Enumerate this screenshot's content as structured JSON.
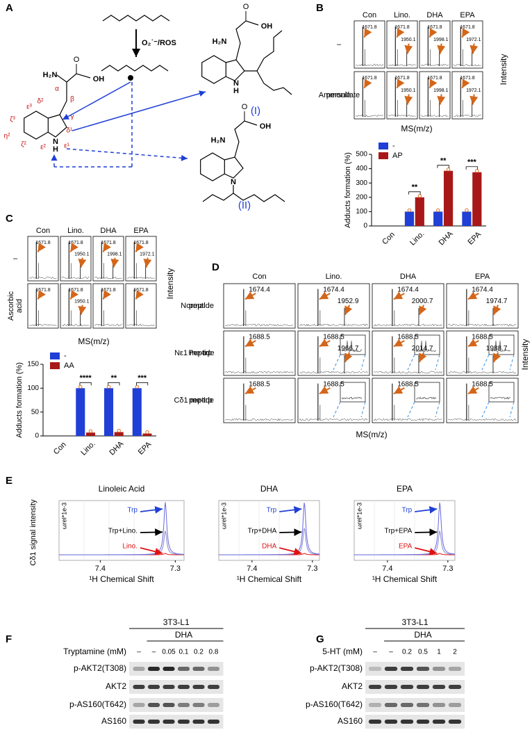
{
  "panels": [
    "A",
    "B",
    "C",
    "D",
    "E",
    "F",
    "G"
  ],
  "panel_a": {
    "reagent": "O₂˙⁻/ROS",
    "atoms": [
      "α",
      "β",
      "γ",
      "δ¹",
      "δ²",
      "ε¹",
      "ε²",
      "ε³",
      "ζ²",
      "ζ³",
      "η²"
    ],
    "groups": {
      "amine": "H₂N",
      "acid": "OH",
      "carbonyl": "O",
      "nitrogen": "N",
      "hydrogen": "H"
    },
    "products": [
      "(I)",
      "(II)"
    ]
  },
  "panel_b": {
    "columns": [
      "Con",
      "Lino.",
      "DHA",
      "EPA"
    ],
    "row_labels": [
      [
        "–"
      ],
      [
        "Ammonia",
        "persulfate"
      ]
    ],
    "peaks": [
      [
        [
          "1671.8"
        ],
        [
          "1671.8",
          "1950.1"
        ],
        [
          "1671.8",
          "1998.1"
        ],
        [
          "1671.8",
          "1972.1"
        ]
      ],
      [
        [
          "1671.8"
        ],
        [
          "1671.8",
          "1950.1"
        ],
        [
          "1671.8",
          "1998.1"
        ],
        [
          "1671.8",
          "1972.1"
        ]
      ]
    ],
    "y_label": "Intensity",
    "x_label": "MS(m/z)"
  },
  "panel_c": {
    "columns": [
      "Con",
      "Lino.",
      "DHA",
      "EPA"
    ],
    "row_labels": [
      [
        "–"
      ],
      [
        "Ascorbic",
        "acid"
      ]
    ],
    "peaks": [
      [
        [
          "1671.8"
        ],
        [
          "1671.8",
          "1950.1"
        ],
        [
          "1671.8",
          "1998.1"
        ],
        [
          "1671.8",
          "1972.1"
        ]
      ],
      [
        [
          "1671.8"
        ],
        [
          "1671.8",
          "1950.1"
        ],
        [
          "1671.8"
        ],
        [
          "1671.8"
        ]
      ]
    ],
    "y_label": "Intensity",
    "x_label": "MS(m/z)"
  },
  "panel_d": {
    "columns": [
      "Con",
      "Lino.",
      "DHA",
      "EPA"
    ],
    "row_labels": [
      [
        "Normal",
        "peptide"
      ],
      [
        "Nε1 me-trp",
        "Peptide"
      ],
      [
        "Cδ1 me-trp",
        "peptide"
      ]
    ],
    "peaks": [
      [
        [
          "1674.4"
        ],
        [
          "1674.4",
          "1952.9"
        ],
        [
          "1674.4",
          "2000.7"
        ],
        [
          "1674.4",
          "1974.7"
        ]
      ],
      [
        [
          "1688.5"
        ],
        [
          "1688.5",
          "1966.7"
        ],
        [
          "1688.5",
          "2014.7"
        ],
        [
          "1688.5",
          "1988.7"
        ]
      ],
      [
        [
          "1688.5"
        ],
        [
          "1688.5"
        ],
        [
          "1688.5"
        ],
        [
          "1688.5"
        ]
      ]
    ],
    "y_label": "Intensity",
    "x_label": "MS(m/z)"
  },
  "panel_e": {
    "y_label": "Cδ1 signal intensity",
    "unit": "ωrel*1e-3",
    "x_label": "¹H Chemical Shift",
    "x_ticks": [
      "7.4",
      "7.3"
    ],
    "plots": [
      {
        "title": "Linoleic Acid",
        "labels": [
          "Trp",
          "Trp+Lino.",
          "Lino."
        ]
      },
      {
        "title": "DHA",
        "labels": [
          "Trp",
          "Trp+DHA",
          "DHA"
        ]
      },
      {
        "title": "EPA",
        "labels": [
          "Trp",
          "Trp+EPA",
          "EPA"
        ]
      }
    ]
  },
  "panel_f": {
    "cell": "3T3-L1",
    "treatment": "DHA",
    "dose_label": "Tryptamine (mM)",
    "lanes": [
      "–",
      "–",
      "0.05",
      "0.1",
      "0.2",
      "0.8"
    ],
    "rows": [
      "p-AKT2(T308)",
      "AKT2",
      "p-AS160(T642)",
      "AS160"
    ]
  },
  "panel_g": {
    "cell": "3T3-L1",
    "treatment": "DHA",
    "dose_label": "5-HT (mM)",
    "lanes": [
      "–",
      "–",
      "0.2",
      "0.5",
      "1",
      "2"
    ],
    "rows": [
      "p-AKT2(T308)",
      "AKT2",
      "p-AS160(T642)",
      "AS160"
    ]
  },
  "chart_data": [
    {
      "type": "bar",
      "y_label": "Adducts formation (%)",
      "categories": [
        "Con",
        "Lino.",
        "DHA",
        "EPA"
      ],
      "series": [
        {
          "name": "-",
          "color": "#1f3fd6",
          "values": [
            0,
            100,
            100,
            100
          ]
        },
        {
          "name": "AP",
          "color": "#a81818",
          "values": [
            0,
            200,
            385,
            375
          ]
        }
      ],
      "significance": [
        null,
        "**",
        "**",
        "***"
      ],
      "ylim": [
        0,
        500
      ],
      "yticks": [
        0,
        100,
        200,
        300,
        400,
        500
      ]
    },
    {
      "type": "bar",
      "y_label": "Adducts formation (%)",
      "categories": [
        "Con",
        "Lino.",
        "DHA",
        "EPA"
      ],
      "series": [
        {
          "name": "-",
          "color": "#1f3fd6",
          "values": [
            0,
            100,
            100,
            100
          ]
        },
        {
          "name": "AA",
          "color": "#a81818",
          "values": [
            0,
            7,
            8,
            5
          ]
        }
      ],
      "significance": [
        null,
        "****",
        "**",
        "***"
      ],
      "ylim": [
        0,
        150
      ],
      "yticks": [
        0,
        50,
        100,
        150
      ]
    }
  ]
}
